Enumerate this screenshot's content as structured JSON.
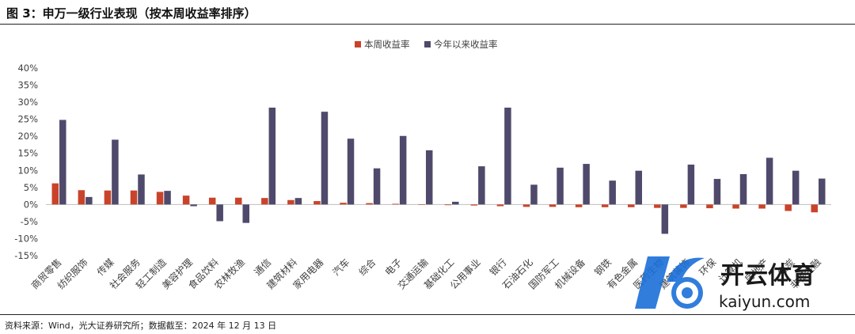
{
  "header": {
    "title": "图 3：申万一级行业表现（按本周收益率排序）"
  },
  "footer": {
    "source": "资料来源：Wind，光大证券研究所；数据截至：2024 年 12 月 13 日"
  },
  "watermark": {
    "brand_cn": "开云体育",
    "brand_en": "kaiyun.com"
  },
  "colors": {
    "weekly": "#C9432A",
    "ytd": "#4F4A6B",
    "axis": "#bfbfbf",
    "text": "#404040"
  },
  "chart_data": {
    "type": "bar",
    "title": "",
    "xlabel": "",
    "ylabel": "",
    "ylim": [
      -15,
      40
    ],
    "yticks": [
      -15,
      -10,
      -5,
      0,
      5,
      10,
      15,
      20,
      25,
      30,
      35,
      40
    ],
    "ytick_suffix": "%",
    "legend_position": "top-center",
    "categories": [
      "商贸零售",
      "纺织服饰",
      "传媒",
      "社会服务",
      "轻工制造",
      "美容护理",
      "食品饮料",
      "农林牧渔",
      "通信",
      "建筑材料",
      "家用电器",
      "汽车",
      "综合",
      "电子",
      "交通运输",
      "基础化工",
      "公用事业",
      "银行",
      "石油石化",
      "国防军工",
      "机械设备",
      "钢铁",
      "有色金属",
      "医药生物",
      "建筑装饰",
      "环保",
      "计算机",
      "房地产",
      "煤炭",
      "非银金融"
    ],
    "series": [
      {
        "name": "本周收益率",
        "values": [
          6.2,
          4.2,
          4.1,
          4.1,
          3.7,
          2.6,
          2.0,
          2.0,
          1.9,
          1.3,
          1.0,
          0.5,
          0.4,
          0.2,
          -0.1,
          -0.2,
          -0.3,
          -0.5,
          -0.7,
          -0.7,
          -0.8,
          -0.8,
          -0.8,
          -1.0,
          -1.0,
          -1.1,
          -1.2,
          -1.2,
          -1.9,
          -2.3
        ]
      },
      {
        "name": "今年以来收益率",
        "values": [
          24.8,
          2.2,
          19.0,
          8.8,
          4.0,
          -0.5,
          -4.9,
          -5.4,
          28.4,
          1.9,
          27.2,
          19.3,
          10.6,
          20.1,
          15.9,
          0.8,
          11.2,
          28.4,
          5.8,
          10.8,
          11.9,
          7.0,
          9.9,
          -8.6,
          11.7,
          7.5,
          8.9,
          13.7,
          9.9,
          7.6
        ]
      }
    ]
  }
}
